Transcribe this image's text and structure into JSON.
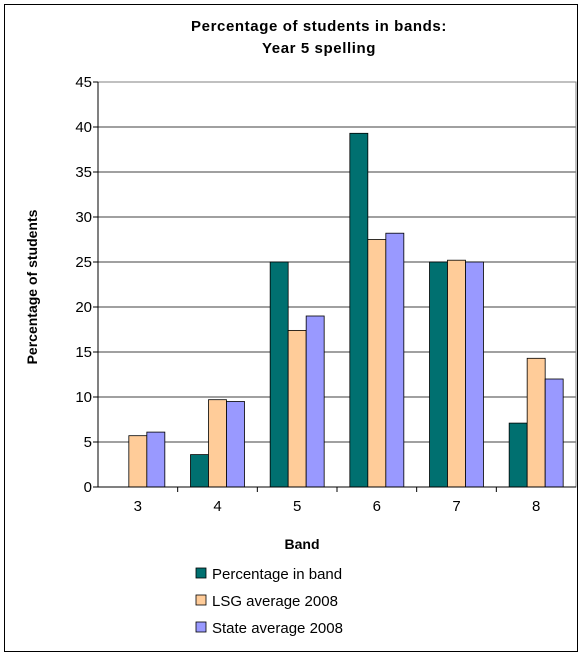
{
  "chart_data": {
    "type": "bar",
    "title_line1": "Percentage of students in bands:",
    "title_line2": "Year 5 spelling",
    "xlabel": "Band",
    "ylabel": "Percentage of students",
    "categories": [
      "3",
      "4",
      "5",
      "6",
      "7",
      "8"
    ],
    "ylim": [
      0,
      45
    ],
    "ytick_step": 5,
    "yticks": [
      "0",
      "5",
      "10",
      "15",
      "20",
      "25",
      "30",
      "35",
      "40",
      "45"
    ],
    "series": [
      {
        "name": "Percentage in band",
        "color": "#007070",
        "values": [
          0,
          3.6,
          25,
          39.3,
          25,
          7.1
        ]
      },
      {
        "name": "LSG average 2008",
        "color": "#ffcc99",
        "values": [
          5.7,
          9.7,
          17.4,
          27.5,
          25.2,
          14.3
        ]
      },
      {
        "name": "State average 2008",
        "color": "#9999ff",
        "values": [
          6.1,
          9.5,
          19.0,
          28.2,
          25.0,
          12.0
        ]
      }
    ],
    "grid": "horizontal",
    "legend_position": "bottom"
  }
}
